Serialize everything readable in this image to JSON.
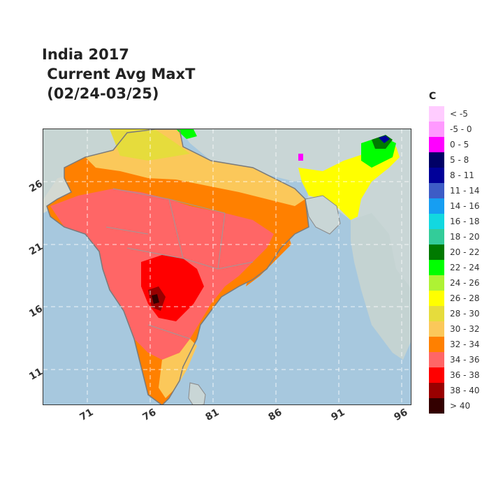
{
  "title": {
    "line1": "India 2017",
    "line2": " Current Avg MaxT",
    "line3": " (02/24-03/25)"
  },
  "map": {
    "lon_ticks": [
      "71",
      "76",
      "81",
      "86",
      "91",
      "96"
    ],
    "lat_ticks": [
      "26",
      "21",
      "16",
      "11"
    ],
    "ocean_color": "#a7c8de",
    "land_outside_color": "#c9d6d6",
    "grid": "dashed-white"
  },
  "legend": {
    "title": "C",
    "items": [
      {
        "label": "< -5",
        "color": "#ffccff"
      },
      {
        "label": "-5 - 0",
        "color": "#ff99ff"
      },
      {
        "label": "0 - 5",
        "color": "#ff00ff"
      },
      {
        "label": "5 - 8",
        "color": "#000066"
      },
      {
        "label": "8 - 11",
        "color": "#000099"
      },
      {
        "label": "11 - 14",
        "color": "#3d5cc6"
      },
      {
        "label": "14 - 16",
        "color": "#169ef2"
      },
      {
        "label": "16 - 18",
        "color": "#12d8e0"
      },
      {
        "label": "18 - 20",
        "color": "#33cc99"
      },
      {
        "label": "20 - 22",
        "color": "#007a00"
      },
      {
        "label": "22 - 24",
        "color": "#00ff00"
      },
      {
        "label": "24 - 26",
        "color": "#aef234"
      },
      {
        "label": "26 - 28",
        "color": "#ffff00"
      },
      {
        "label": "28 - 30",
        "color": "#e6dc3c"
      },
      {
        "label": "30 - 32",
        "color": "#fbc85a"
      },
      {
        "label": "32 - 34",
        "color": "#ff8000"
      },
      {
        "label": "34 - 36",
        "color": "#ff6666"
      },
      {
        "label": "36 - 38",
        "color": "#ff0000"
      },
      {
        "label": "38 - 40",
        "color": "#990000"
      },
      {
        "label": "> 40",
        "color": "#330000"
      }
    ]
  }
}
